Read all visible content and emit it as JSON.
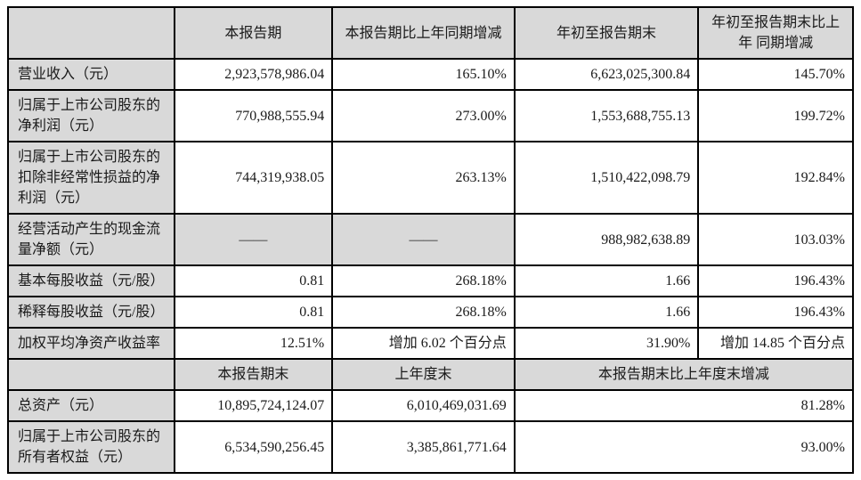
{
  "colors": {
    "cell_shaded": "#d9d9d9",
    "border": "#000000",
    "text": "#1a1a1a",
    "background": "#ffffff"
  },
  "table": {
    "header1": [
      "",
      "本报告期",
      "本报告期比上年同期增减",
      "年初至报告期末",
      "年初至报告期末比上年\n同期增减"
    ],
    "body1": [
      {
        "label": "营业收入（元）",
        "values": [
          "2,923,578,986.04",
          "165.10%",
          "6,623,025,300.84",
          "145.70%"
        ]
      },
      {
        "label": "归属于上市公司股东的净利润（元）",
        "values": [
          "770,988,555.94",
          "273.00%",
          "1,553,688,755.13",
          "199.72%"
        ]
      },
      {
        "label": "归属于上市公司股东的扣除非经常性损益的净利润（元）",
        "values": [
          "744,319,938.05",
          "263.13%",
          "1,510,422,098.79",
          "192.84%"
        ]
      },
      {
        "label": "经营活动产生的现金流量净额（元）",
        "values": [
          "——",
          "——",
          "988,982,638.89",
          "103.03%"
        ],
        "shaded": [
          0,
          1
        ]
      },
      {
        "label": "基本每股收益（元/股）",
        "values": [
          "0.81",
          "268.18%",
          "1.66",
          "196.43%"
        ]
      },
      {
        "label": "稀释每股收益（元/股）",
        "values": [
          "0.81",
          "268.18%",
          "1.66",
          "196.43%"
        ]
      },
      {
        "label": "加权平均净资产收益率",
        "values": [
          "12.51%",
          "增加 6.02 个百分点",
          "31.90%",
          "增加 14.85 个百分点"
        ]
      }
    ],
    "header2": [
      "",
      "本报告期末",
      "上年度末",
      "本报告期末比上年度末增减"
    ],
    "body2": [
      {
        "label": "总资产（元）",
        "values": [
          "10,895,724,124.07",
          "6,010,469,031.69",
          "81.28%"
        ]
      },
      {
        "label": "归属于上市公司股东的所有者权益（元）",
        "values": [
          "6,534,590,256.45",
          "3,385,861,771.64",
          "93.00%"
        ]
      }
    ]
  }
}
